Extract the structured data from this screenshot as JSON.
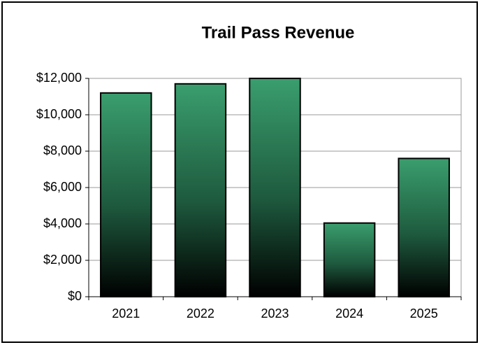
{
  "chart_data": {
    "type": "bar",
    "title": "Trail Pass Revenue",
    "categories": [
      "2021",
      "2022",
      "2023",
      "2024",
      "2025"
    ],
    "values": [
      11200,
      11700,
      12000,
      4050,
      7600
    ],
    "color": "#3a9e6e",
    "ylim": [
      0,
      12000
    ],
    "yticks": [
      {
        "value": 0,
        "label": "$0"
      },
      {
        "value": 2000,
        "label": "$2,000"
      },
      {
        "value": 4000,
        "label": "$4,000"
      },
      {
        "value": 6000,
        "label": "$6,000"
      },
      {
        "value": 8000,
        "label": "$8,000"
      },
      {
        "value": 10000,
        "label": "$10,000"
      },
      {
        "value": 12000,
        "label": "$12,000"
      }
    ],
    "grid": true
  }
}
